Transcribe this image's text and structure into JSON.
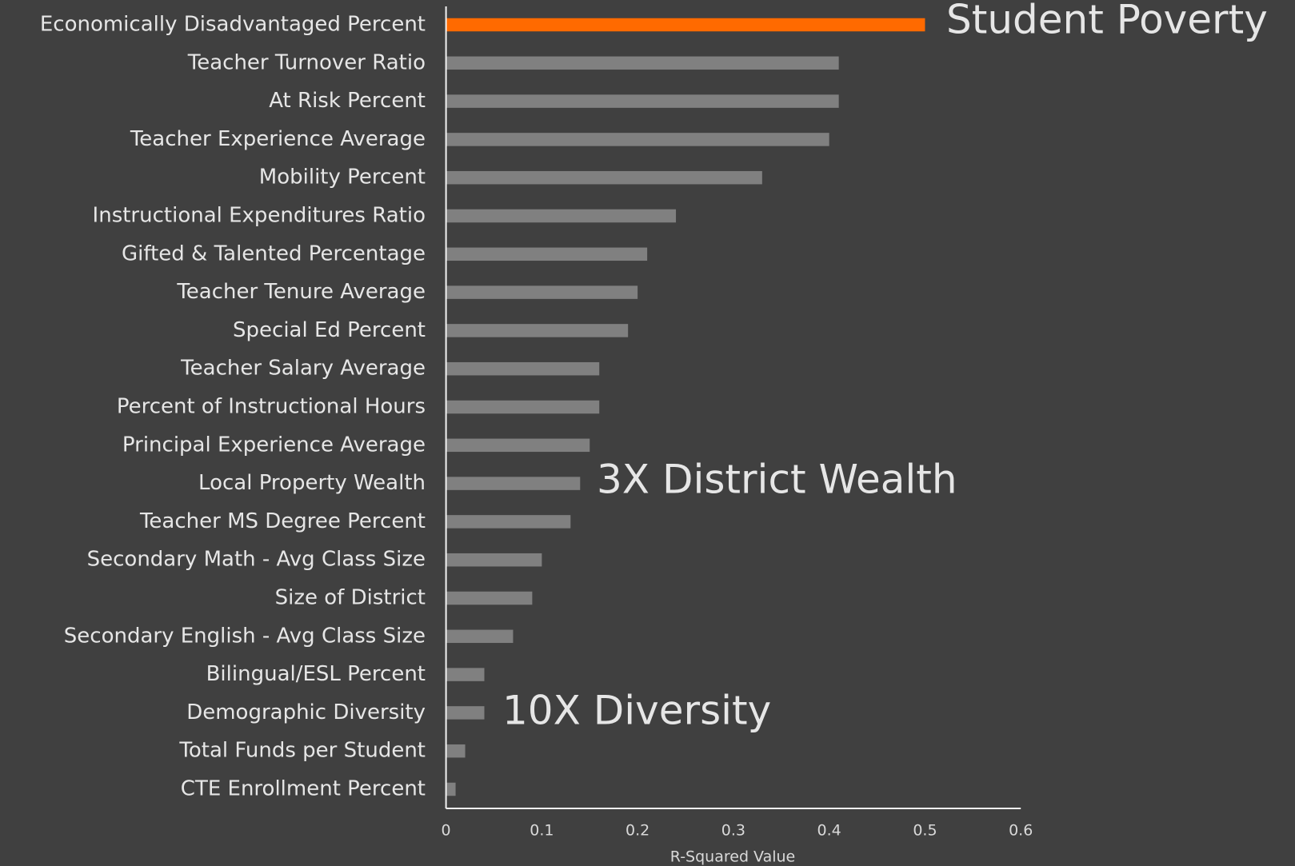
{
  "chart_data": {
    "type": "bar",
    "orientation": "horizontal",
    "categories": [
      "Economically Disadvantaged Percent",
      "Teacher Turnover Ratio",
      "At Risk Percent",
      "Teacher Experience Average",
      "Mobility Percent",
      "Instructional Expenditures Ratio",
      "Gifted & Talented Percentage",
      "Teacher Tenure Average",
      "Special Ed Percent",
      "Teacher Salary Average",
      "Percent of Instructional Hours",
      "Principal Experience Average",
      "Local Property Wealth",
      "Teacher MS Degree Percent",
      "Secondary Math - Avg Class Size",
      "Size of District",
      "Secondary English - Avg Class Size",
      "Bilingual/ESL Percent",
      "Demographic Diversity",
      "Total Funds per Student",
      "CTE Enrollment Percent"
    ],
    "values": [
      0.5,
      0.41,
      0.41,
      0.4,
      0.33,
      0.24,
      0.21,
      0.2,
      0.19,
      0.16,
      0.16,
      0.15,
      0.14,
      0.13,
      0.1,
      0.09,
      0.07,
      0.04,
      0.04,
      0.02,
      0.01
    ],
    "colors": [
      "#ff6a00",
      "#808080",
      "#808080",
      "#808080",
      "#808080",
      "#808080",
      "#808080",
      "#808080",
      "#808080",
      "#808080",
      "#808080",
      "#808080",
      "#808080",
      "#808080",
      "#808080",
      "#808080",
      "#808080",
      "#808080",
      "#808080",
      "#808080",
      "#808080"
    ],
    "xlim": [
      0,
      0.6
    ],
    "xticks": [
      0,
      0.1,
      0.2,
      0.3,
      0.4,
      0.5,
      0.6
    ],
    "xlabel": "R-Squared Value",
    "annotations": [
      "Student Poverty",
      "3X District Wealth",
      "10X Diversity"
    ],
    "grid": false
  }
}
